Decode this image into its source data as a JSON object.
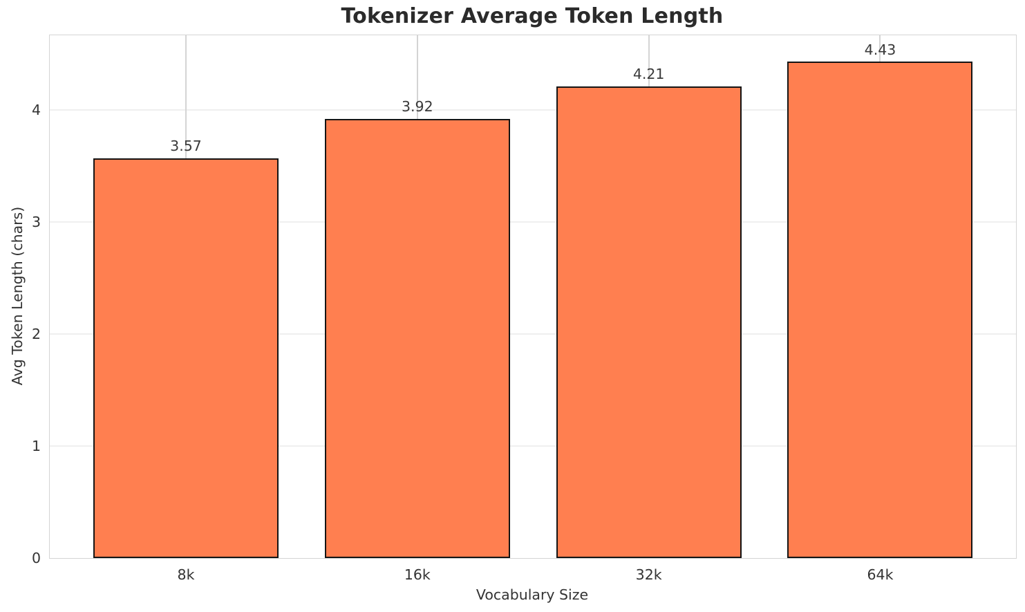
{
  "chart_data": {
    "type": "bar",
    "title": "Tokenizer Average Token Length",
    "xlabel": "Vocabulary Size",
    "ylabel": "Avg Token Length (chars)",
    "categories": [
      "8k",
      "16k",
      "32k",
      "64k"
    ],
    "values": [
      3.57,
      3.92,
      4.21,
      4.43
    ],
    "value_labels": [
      "3.57",
      "3.92",
      "4.21",
      "4.43"
    ],
    "yticks": [
      0,
      1,
      2,
      3,
      4
    ],
    "ylim": [
      0,
      4.67
    ],
    "grid": true,
    "legend_position": "none",
    "colors": {
      "bar_fill": "#FF7F50",
      "bar_edge": "#141414",
      "hgrid": "#efefef",
      "vgrid": "#d4d4d4",
      "spine": "#d4d4d4",
      "title_text": "#2b2b2b",
      "tick_text": "#333333"
    }
  }
}
